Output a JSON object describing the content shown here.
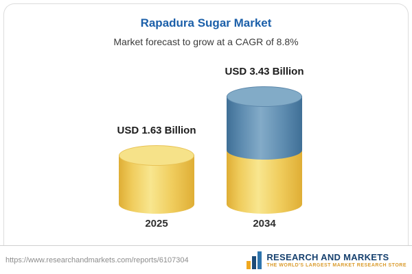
{
  "header": {
    "title": "Rapadura Sugar Market",
    "subtitle": "Market forecast to grow at a CAGR of 8.8%"
  },
  "chart_data": {
    "type": "bar",
    "title": "Rapadura Sugar Market",
    "subtitle": "Market forecast to grow at a CAGR of 8.8%",
    "unit": "USD Billion",
    "cagr_percent": 8.8,
    "categories": [
      "2025",
      "2034"
    ],
    "values": [
      1.63,
      3.43
    ],
    "bars": [
      {
        "category": "2025",
        "value": 1.63,
        "label": "USD 1.63 Billion",
        "segment_colors": [
          "#f0cd5e"
        ]
      },
      {
        "category": "2034",
        "value": 3.43,
        "label": "USD 3.43 Billion",
        "segment_colors": [
          "#5e8cb0",
          "#f0cd5e"
        ]
      }
    ],
    "legend_position": "none",
    "grid": false
  },
  "footer": {
    "url": "https://www.researchandmarkets.com/reports/6107304",
    "logo": {
      "name": "RESEARCH AND MARKETS",
      "tagline": "THE WORLD'S LARGEST MARKET RESEARCH STORE"
    }
  },
  "colors": {
    "title_blue": "#1b5fa9",
    "bar_yellow": "#f0cd5e",
    "bar_blue": "#5e8cb0",
    "logo_navy": "#16406e",
    "tagline_gold": "#d99a2b",
    "card_border": "#dcdcdc"
  }
}
